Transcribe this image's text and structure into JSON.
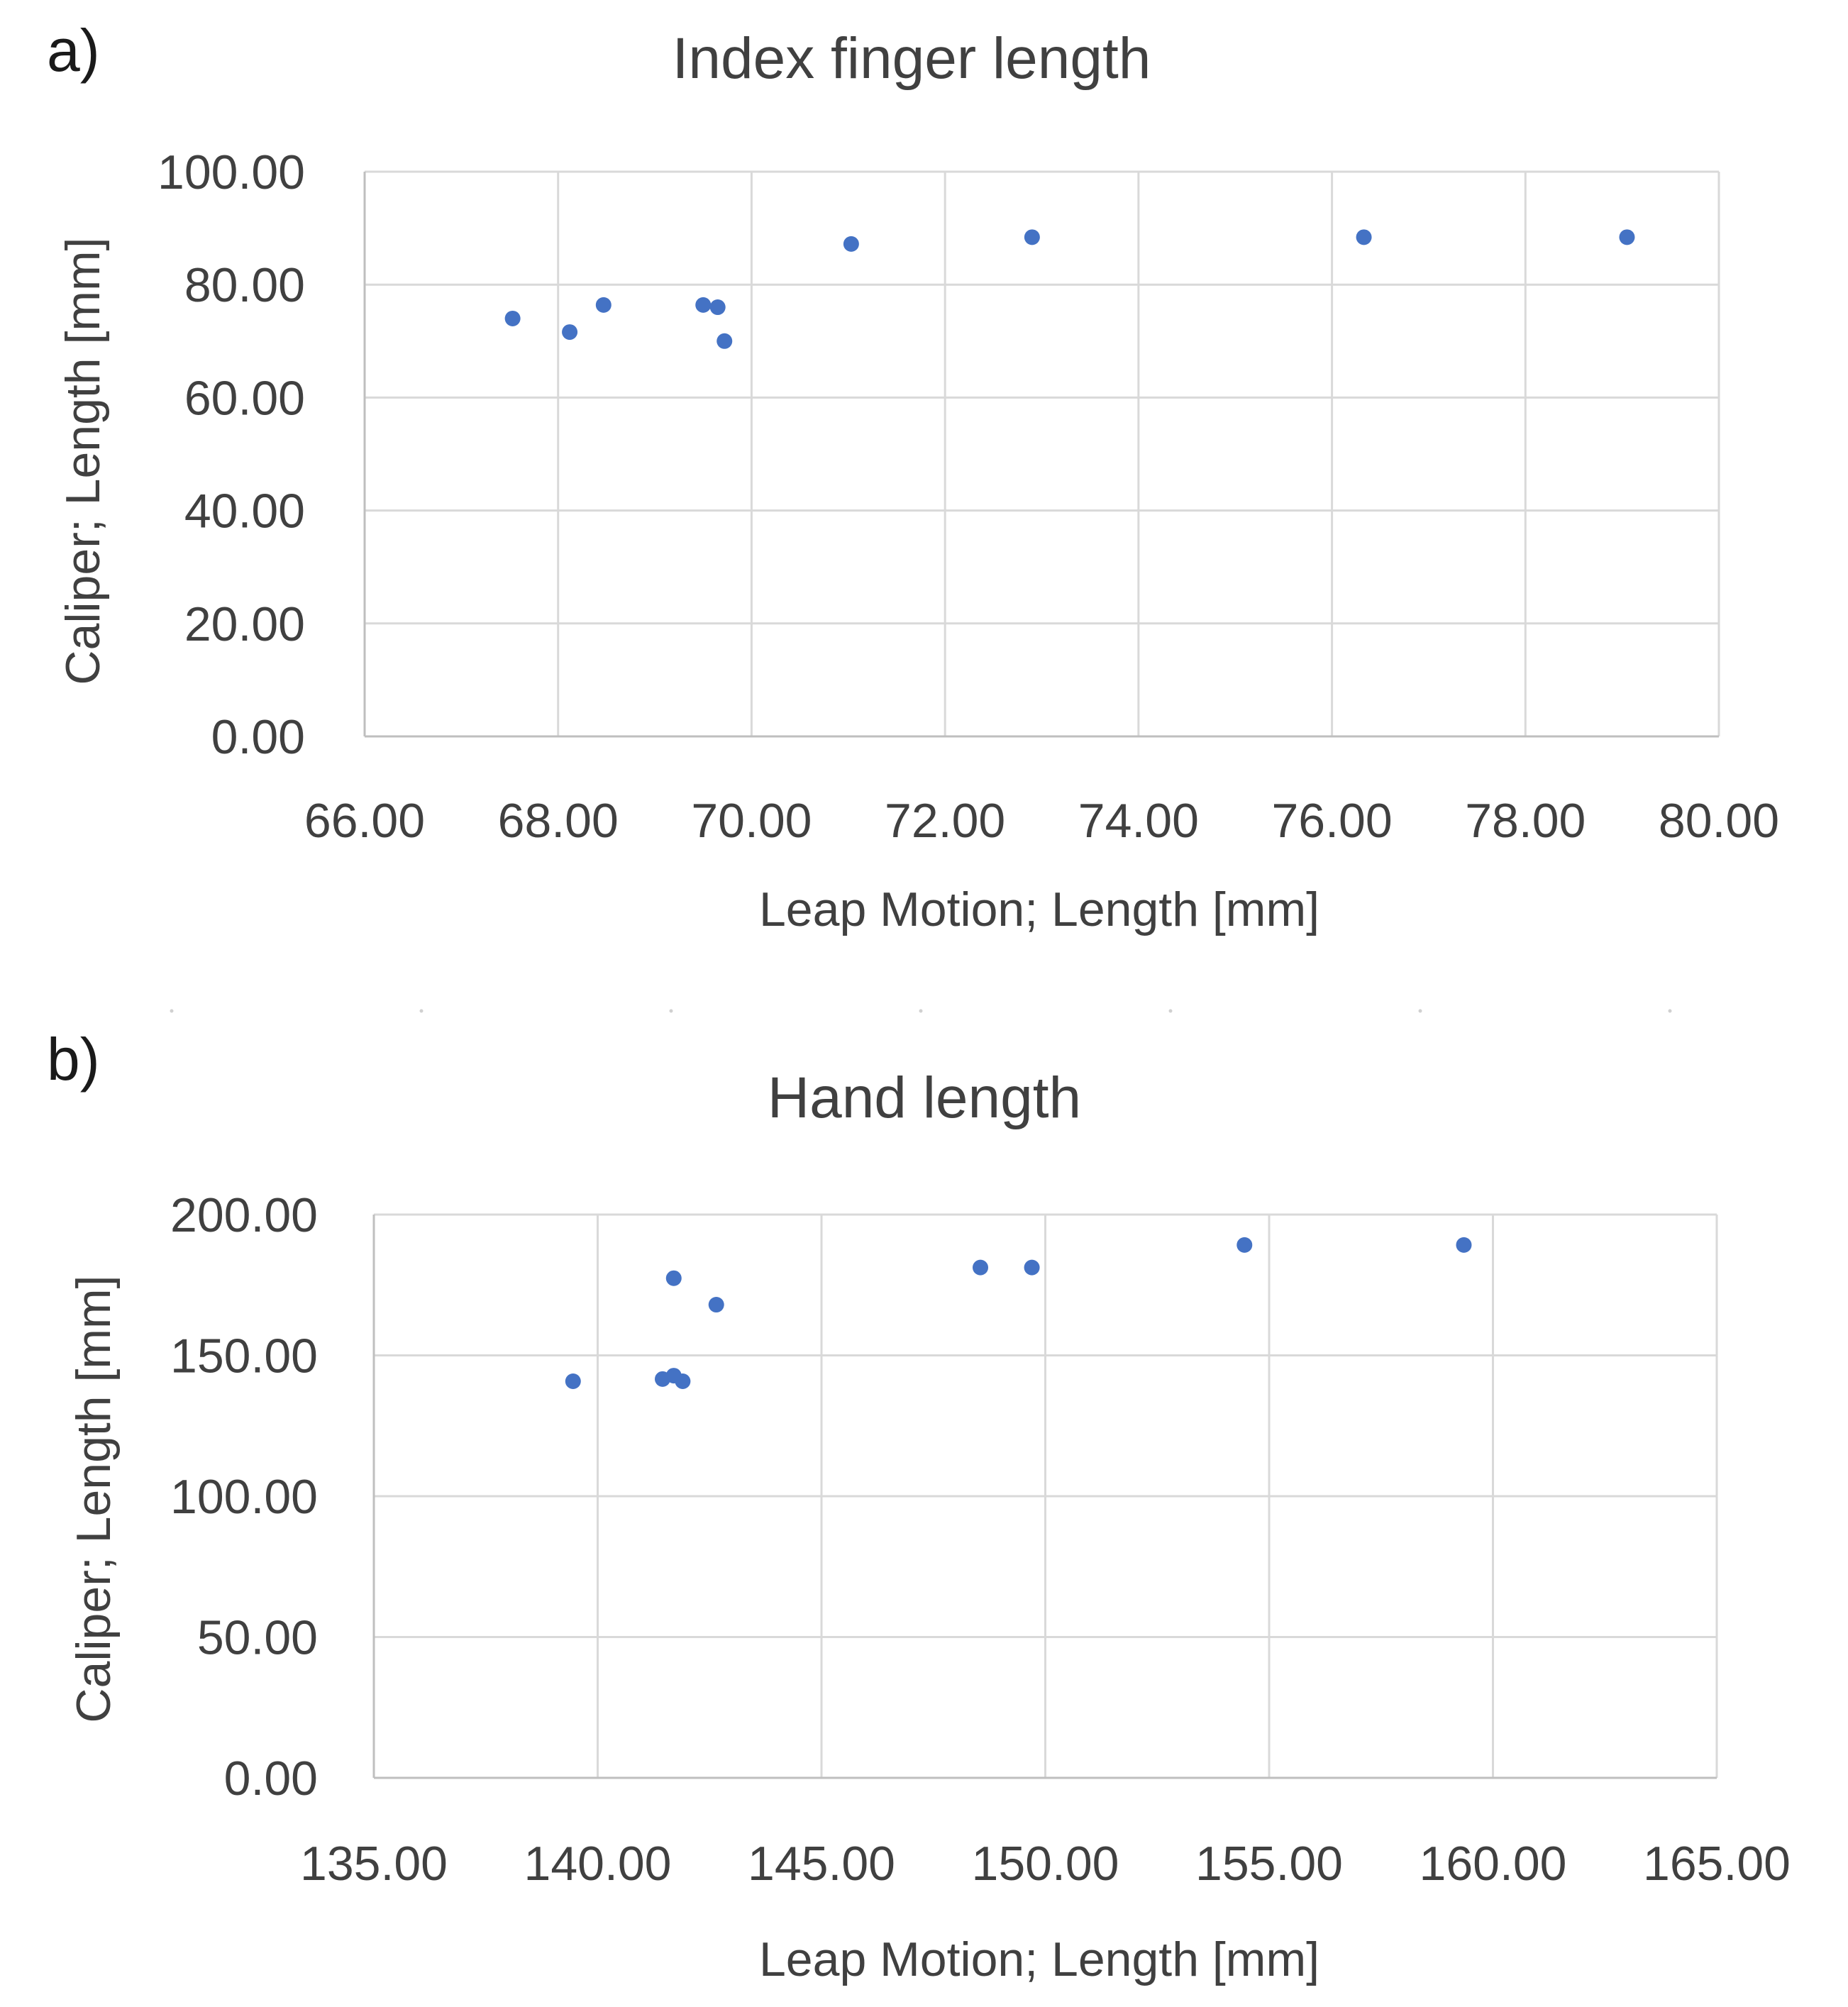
{
  "chart_data": [
    {
      "type": "scatter",
      "panel_label": "a)",
      "title": "Index finger length",
      "xlabel": "Leap Motion; Length [mm]",
      "ylabel": "Caliper; Length [mm]",
      "xlim": [
        66,
        80
      ],
      "ylim": [
        0,
        100
      ],
      "xticks": [
        "66.00",
        "68.00",
        "70.00",
        "72.00",
        "74.00",
        "76.00",
        "78.00",
        "80.00"
      ],
      "yticks": [
        "0.00",
        "20.00",
        "40.00",
        "60.00",
        "80.00",
        "100.00"
      ],
      "grid": true,
      "legend": "none",
      "marker_color": "#4472C4",
      "points": [
        {
          "x": 67.53,
          "y": 74.0
        },
        {
          "x": 68.12,
          "y": 71.6
        },
        {
          "x": 68.47,
          "y": 76.4
        },
        {
          "x": 69.5,
          "y": 76.4
        },
        {
          "x": 69.65,
          "y": 76.0
        },
        {
          "x": 69.72,
          "y": 70.0
        },
        {
          "x": 71.03,
          "y": 87.2
        },
        {
          "x": 72.9,
          "y": 88.4
        },
        {
          "x": 76.33,
          "y": 88.4
        },
        {
          "x": 79.05,
          "y": 88.4
        }
      ]
    },
    {
      "type": "scatter",
      "panel_label": "b)",
      "title": "Hand length",
      "xlabel": "Leap Motion; Length [mm]",
      "ylabel": "Caliper; Length [mm]",
      "xlim": [
        135,
        165
      ],
      "ylim": [
        0,
        200
      ],
      "xticks": [
        "135.00",
        "140.00",
        "145.00",
        "150.00",
        "155.00",
        "160.00",
        "165.00"
      ],
      "yticks": [
        "0.00",
        "50.00",
        "100.00",
        "150.00",
        "200.00"
      ],
      "grid": true,
      "legend": "none",
      "marker_color": "#4472C4",
      "points": [
        {
          "x": 139.45,
          "y": 140.8
        },
        {
          "x": 141.45,
          "y": 141.6
        },
        {
          "x": 141.7,
          "y": 142.8
        },
        {
          "x": 141.9,
          "y": 140.8
        },
        {
          "x": 141.7,
          "y": 177.4
        },
        {
          "x": 142.65,
          "y": 168.0
        },
        {
          "x": 148.55,
          "y": 181.2
        },
        {
          "x": 149.7,
          "y": 181.2
        },
        {
          "x": 154.45,
          "y": 189.2
        },
        {
          "x": 159.35,
          "y": 189.2
        }
      ]
    }
  ]
}
